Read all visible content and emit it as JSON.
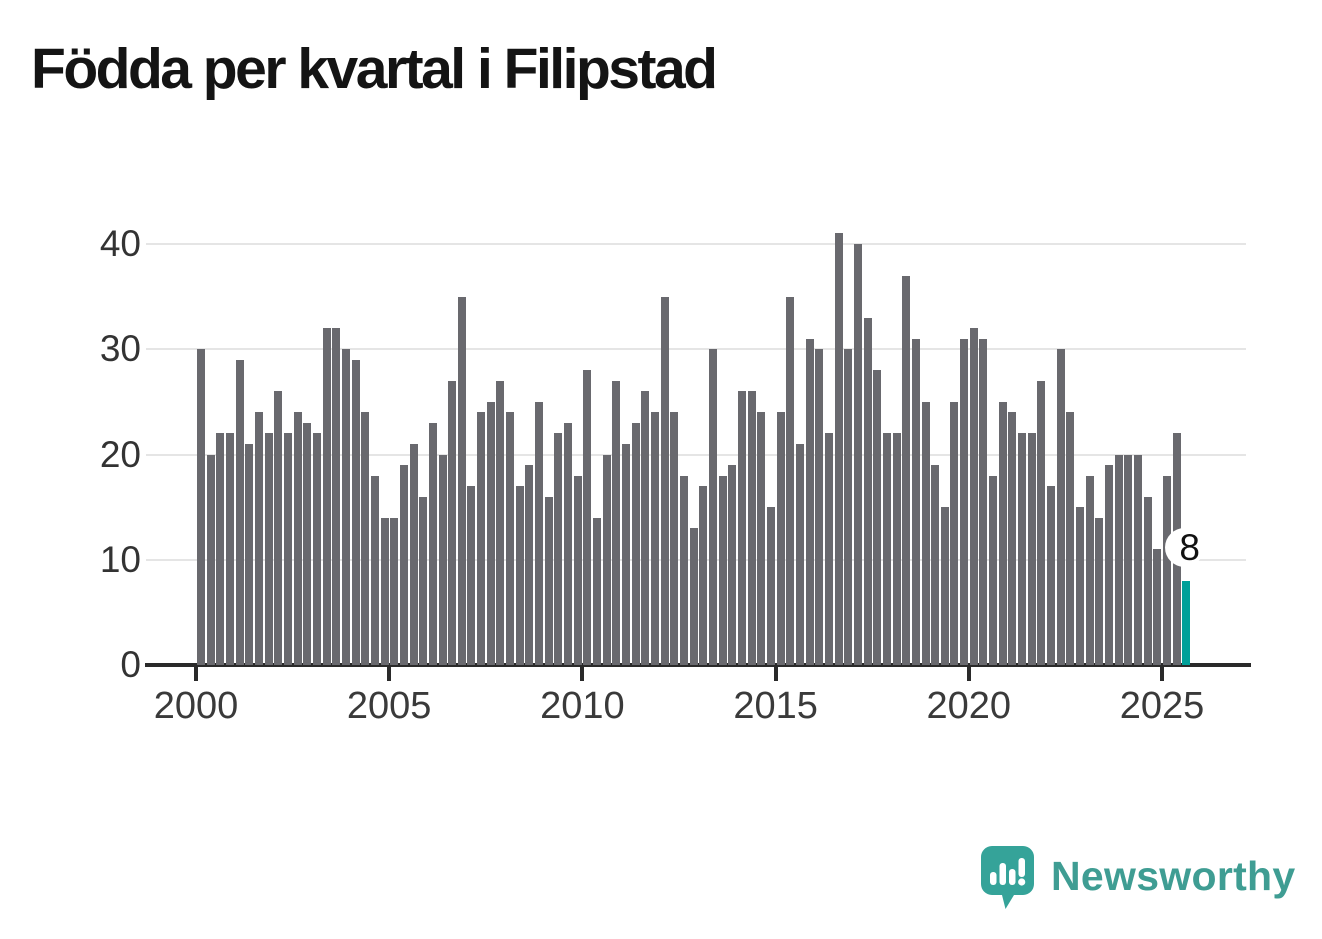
{
  "title": "Födda per kvartal i Filipstad",
  "colors": {
    "bar": "#69696E",
    "highlight": "#00A099",
    "axis": "#2A2A2A",
    "grid": "#E5E5E5",
    "tick_label": "#3A3A3A",
    "title": "#141414",
    "brand_teal": "#3F9D93"
  },
  "footer": {
    "brand": "Newsworthy",
    "logo_icon": "newsworthy-speech-bubble-chart-icon"
  },
  "chart_data": {
    "type": "bar",
    "title": "Födda per kvartal i Filipstad",
    "unit_per_bar": "quarter",
    "x_start": "2000-Q1",
    "x_end": "2025-Q3",
    "ylim": [
      0,
      40
    ],
    "grid": true,
    "legend": "none",
    "y_ticks": [
      0,
      10,
      20,
      30,
      40
    ],
    "x_ticks": [
      {
        "label": "2000",
        "offset": 0
      },
      {
        "label": "2005",
        "offset": 20
      },
      {
        "label": "2010",
        "offset": 40
      },
      {
        "label": "2015",
        "offset": 60
      },
      {
        "label": "2020",
        "offset": 80
      },
      {
        "label": "2025",
        "offset": 100
      }
    ],
    "values": [
      30,
      20,
      22,
      22,
      29,
      21,
      24,
      22,
      26,
      22,
      24,
      23,
      22,
      32,
      32,
      30,
      29,
      24,
      18,
      14,
      14,
      19,
      21,
      16,
      23,
      20,
      27,
      35,
      17,
      24,
      25,
      27,
      24,
      17,
      19,
      25,
      16,
      22,
      23,
      18,
      28,
      14,
      20,
      27,
      21,
      23,
      26,
      24,
      35,
      24,
      18,
      13,
      17,
      30,
      18,
      19,
      26,
      26,
      24,
      15,
      24,
      35,
      21,
      31,
      30,
      22,
      41,
      30,
      40,
      33,
      28,
      22,
      22,
      37,
      31,
      25,
      19,
      15,
      25,
      31,
      32,
      31,
      18,
      25,
      24,
      22,
      22,
      27,
      17,
      30,
      24,
      15,
      18,
      14,
      19,
      20,
      20,
      20,
      16,
      11,
      18,
      22,
      8
    ],
    "highlight_last": true,
    "annotation": {
      "text": "8",
      "index": 102
    }
  }
}
